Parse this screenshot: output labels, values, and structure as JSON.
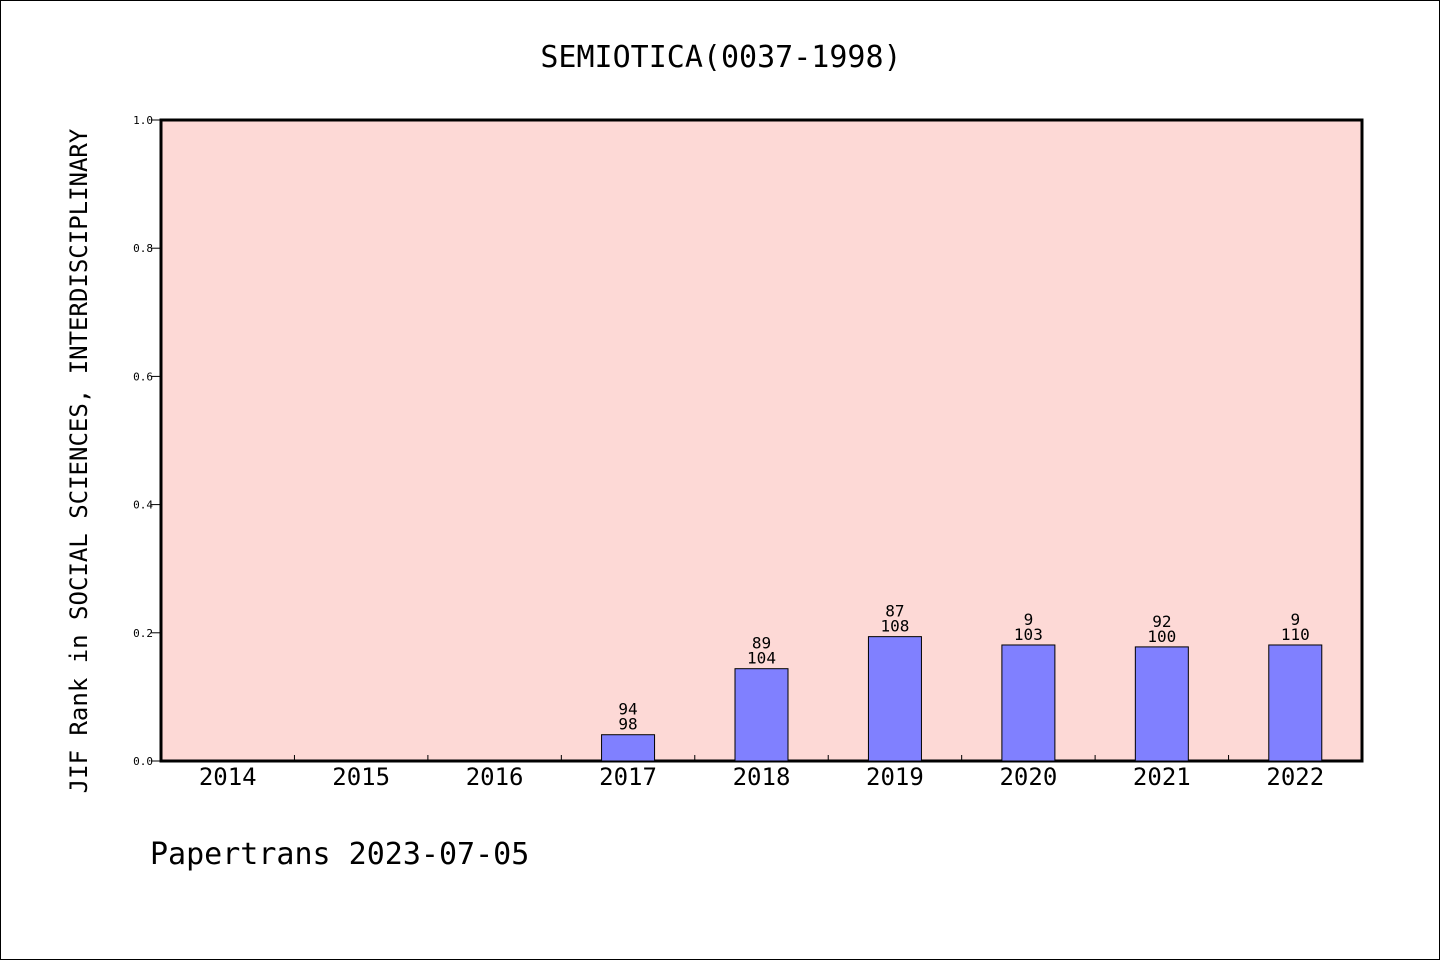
{
  "chart_data": {
    "type": "bar",
    "title": "SEMIOTICA(0037-1998)",
    "xlabel": "",
    "ylabel": "JIF Rank in SOCIAL SCIENCES, INTERDISCIPLINARY",
    "ylim": [
      0,
      1.0
    ],
    "yticks": [
      "0.0",
      "0.2",
      "0.4",
      "0.6",
      "0.8",
      "1.0"
    ],
    "categories": [
      "2014",
      "2015",
      "2016",
      "2017",
      "2018",
      "2019",
      "2020",
      "2021",
      "2022"
    ],
    "values": [
      null,
      null,
      null,
      0.041,
      0.144,
      0.194,
      0.181,
      0.178,
      0.181
    ],
    "labels_top": [
      "",
      "",
      "",
      "94",
      "89",
      "87",
      "9",
      "92",
      "9"
    ],
    "labels_bottom": [
      "",
      "",
      "",
      "98",
      "104",
      "108",
      "103",
      "100",
      "110"
    ],
    "grid": false,
    "colors": {
      "plot_background": "#fdd9d6",
      "bar_fill": "#8080ff",
      "bar_stroke": "#000000"
    }
  },
  "footer": {
    "text": "Papertrans 2023-07-05"
  }
}
